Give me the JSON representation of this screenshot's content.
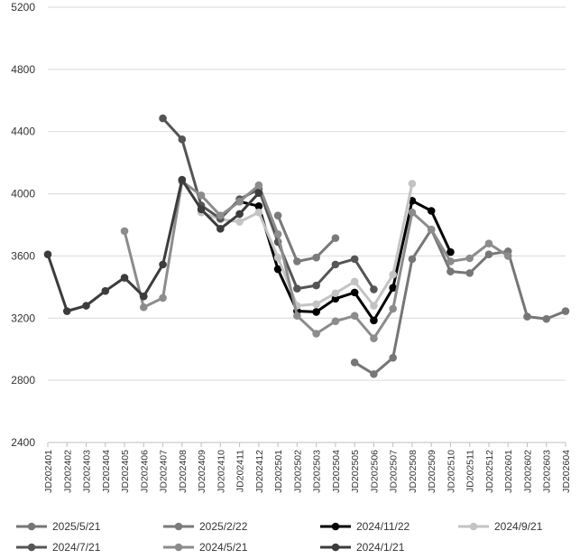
{
  "chart_data": {
    "type": "line",
    "title": "",
    "xlabel": "",
    "ylabel": "",
    "ylim": [
      2400,
      5200
    ],
    "yticks": [
      2400,
      2800,
      3200,
      3600,
      4000,
      4400,
      4800,
      5200
    ],
    "grid": "y-major",
    "legend_placement": "bottom",
    "categories": [
      "JD202401",
      "JD202402",
      "JD202403",
      "JD202404",
      "JD202405",
      "JD202406",
      "JD202407",
      "JD202408",
      "JD202409",
      "JD202410",
      "JD202411",
      "JD202412",
      "JD202501",
      "JD202502",
      "JD202503",
      "JD202504",
      "JD202505",
      "JD202506",
      "JD202507",
      "JD202508",
      "JD202509",
      "JD202510",
      "JD202511",
      "JD202512",
      "JD202601",
      "JD202602",
      "JD202603",
      "JD202604"
    ],
    "series": [
      {
        "name": "2025/5/21",
        "color": "#767676",
        "values": [
          null,
          null,
          null,
          null,
          null,
          null,
          null,
          null,
          null,
          null,
          null,
          null,
          null,
          null,
          null,
          null,
          2915,
          2840,
          2945,
          3580,
          3770,
          3500,
          3490,
          3610,
          3630,
          3210,
          3195,
          3245
        ]
      },
      {
        "name": "2025/2/22",
        "color": "#7a7a7a",
        "values": [
          null,
          null,
          null,
          null,
          null,
          null,
          null,
          null,
          null,
          null,
          null,
          null,
          3860,
          3565,
          3590,
          3715,
          null,
          null,
          null,
          null,
          null,
          null,
          null,
          null,
          null,
          null,
          null,
          null
        ]
      },
      {
        "name": "2024/11/22",
        "color": "#000000",
        "values": [
          null,
          null,
          null,
          null,
          null,
          null,
          null,
          null,
          null,
          null,
          3950,
          3920,
          3515,
          3245,
          3240,
          3325,
          3365,
          3185,
          3395,
          3955,
          3890,
          3625,
          null,
          null,
          null,
          null,
          null,
          null
        ]
      },
      {
        "name": "2024/9/21",
        "color": "#c3c3c3",
        "values": [
          null,
          null,
          null,
          null,
          null,
          null,
          null,
          null,
          3880,
          3835,
          3820,
          3880,
          3590,
          3280,
          3290,
          3360,
          3435,
          3280,
          3480,
          4065,
          null,
          null,
          null,
          null,
          null,
          null,
          null,
          null
        ]
      },
      {
        "name": "2024/7/21",
        "color": "#555555",
        "values": [
          null,
          null,
          null,
          null,
          null,
          null,
          4485,
          4350,
          3925,
          3840,
          3965,
          4030,
          3690,
          3390,
          3410,
          3545,
          3580,
          3385,
          null,
          null,
          null,
          null,
          null,
          null,
          null,
          null,
          null,
          null
        ]
      },
      {
        "name": "2024/5/21",
        "color": "#8c8c8c",
        "values": [
          null,
          null,
          null,
          null,
          3760,
          3270,
          3330,
          4080,
          3990,
          3860,
          3950,
          4055,
          3740,
          3215,
          3100,
          3180,
          3215,
          3070,
          3260,
          3880,
          3770,
          3565,
          3585,
          3680,
          3600,
          null,
          null,
          null
        ]
      },
      {
        "name": "2024/1/21",
        "color": "#3c3c3c",
        "values": [
          3610,
          3245,
          3280,
          3375,
          3460,
          3340,
          3545,
          4090,
          3900,
          3775,
          3870,
          4005,
          null,
          null,
          null,
          null,
          null,
          null,
          null,
          null,
          null,
          null,
          null,
          null,
          null,
          null,
          null,
          null
        ]
      }
    ]
  }
}
